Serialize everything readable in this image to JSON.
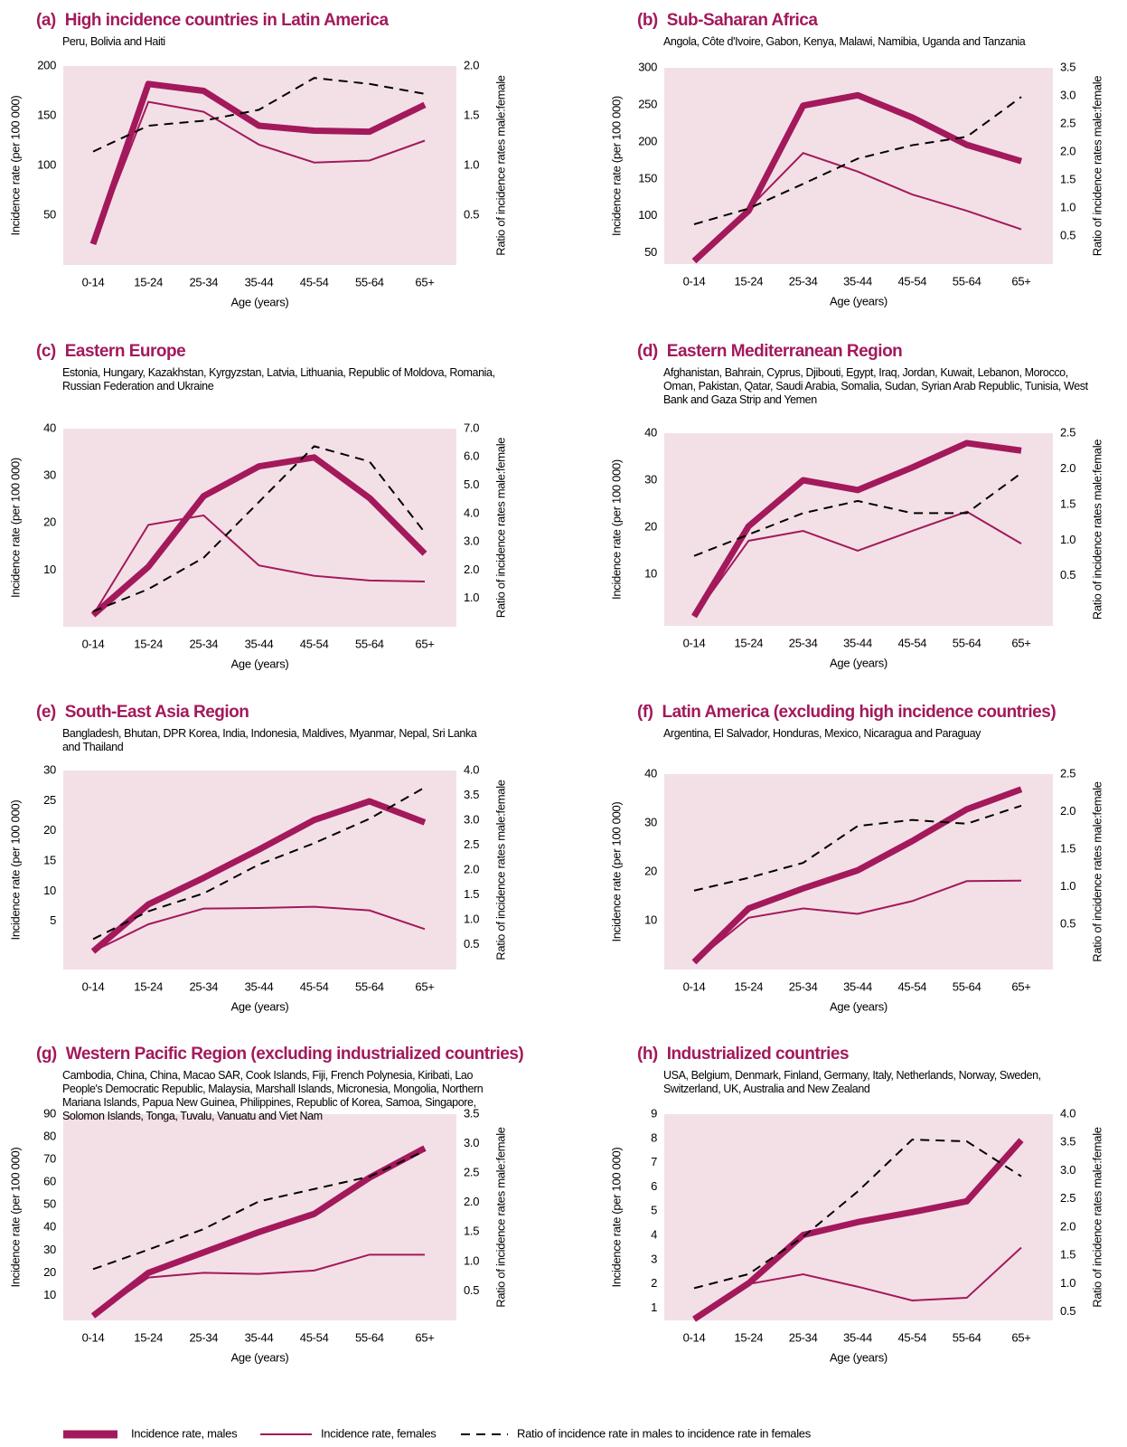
{
  "legend": [
    {
      "name": "Incidence rate, males",
      "color": "#a3195b",
      "style": "thick"
    },
    {
      "name": "Incidence rate, females",
      "color": "#a3195b",
      "style": "thin"
    },
    {
      "name": "Ratio of incidence rate in males to incidence rate in females",
      "color": "#000000",
      "style": "dashed"
    }
  ],
  "chart_data": [
    {
      "type": "line",
      "label": "(a)",
      "title": "High incidence countries in Latin America",
      "subtitle": "Peru, Bolivia and Haiti",
      "xlabel": "Age (years)",
      "ylabel": "Incidence rate (per 100 000)",
      "y2label": "Ratio of incidence rates  male:female",
      "categories": [
        "0-14",
        "15-24",
        "25-34",
        "35-44",
        "45-54",
        "55-64",
        "65+"
      ],
      "ylim": [
        0,
        200
      ],
      "yticks": [
        200,
        150,
        100,
        50
      ],
      "y2lim": [
        0,
        2
      ],
      "y2ticks": [
        {
          "value": 2,
          "label": "2.0"
        },
        1.5,
        {
          "value": 1,
          "label": "1.0"
        },
        0.5
      ],
      "background": "#f3e0e7",
      "series": [
        {
          "values": [
            21,
            182,
            175,
            140,
            135,
            134,
            161
          ]
        },
        {
          "values": [
            21,
            164,
            154,
            121,
            103,
            105,
            125
          ]
        },
        {
          "values": [
            1.14,
            1.4,
            1.45,
            1.56,
            1.88,
            1.82,
            1.72
          ],
          "axis": "y2"
        }
      ]
    },
    {
      "type": "line",
      "label": "(b)",
      "title": "Sub-Saharan Africa",
      "subtitle": "Angola, Côte d'Ivoire, Gabon, Kenya, Malawi, Namibia, Uganda and Tanzania",
      "xlabel": "Age (years)",
      "ylabel": "Incidence rate (per 100 000)",
      "y2label": "Ratio of incidence rates  male:female",
      "categories": [
        "0-14",
        "15-24",
        "25-34",
        "35-44",
        "45-54",
        "55-64",
        "65+"
      ],
      "ylim": [
        35,
        300
      ],
      "yticks": [
        300,
        250,
        200,
        150,
        100,
        50
      ],
      "y2lim": [
        0,
        3.5
      ],
      "y2ticks": [
        3.5,
        {
          "value": 3,
          "label": "3.0"
        },
        2.5,
        {
          "value": 2,
          "label": "2.0"
        },
        1.5,
        {
          "value": 1,
          "label": "1.0"
        },
        0.5
      ],
      "background": "#f3e0e7",
      "series": [
        {
          "values": [
            39,
            107,
            249,
            263,
            233,
            196,
            174
          ]
        },
        {
          "values": [
            40,
            110,
            185,
            160,
            129,
            107,
            82
          ]
        },
        {
          "values": [
            0.71,
            0.99,
            1.43,
            1.88,
            2.12,
            2.27,
            2.98
          ],
          "axis": "y2"
        }
      ]
    },
    {
      "type": "line",
      "label": "(c)",
      "title": "Eastern Europe",
      "subtitle": "Estonia, Hungary, Kazakhstan, Kyrgyzstan, Latvia, Lithuania, Republic of Moldova, Romania, Russian Federation and Ukraine",
      "xlabel": "Age (years)",
      "ylabel": "Incidence rate (per 100 000)",
      "y2label": "Ratio of incidence rates  male:female",
      "categories": [
        "0-14",
        "15-24",
        "25-34",
        "35-44",
        "45-54",
        "55-64",
        "65+"
      ],
      "ylim": [
        -2,
        40
      ],
      "yticks": [
        40,
        30,
        20,
        10
      ],
      "y2lim": [
        0,
        7
      ],
      "y2ticks": [
        {
          "value": 7,
          "label": "7.0"
        },
        {
          "value": 6,
          "label": "6.0"
        },
        {
          "value": 5,
          "label": "5.0"
        },
        {
          "value": 4,
          "label": "4.0"
        },
        {
          "value": 3,
          "label": "3.0"
        },
        {
          "value": 2,
          "label": "2.0"
        },
        {
          "value": 1,
          "label": "1.0"
        }
      ],
      "background": "#f3e0e7",
      "series": [
        {
          "values": [
            0.5,
            10.7,
            25.7,
            32,
            33.9,
            25.3,
            13.5
          ]
        },
        {
          "values": [
            0.5,
            19.6,
            21.6,
            11,
            8.8,
            7.8,
            7.6
          ]
        },
        {
          "values": [
            0.54,
            1.33,
            2.44,
            4.41,
            6.38,
            5.84,
            3.33
          ],
          "axis": "y2"
        }
      ]
    },
    {
      "type": "line",
      "label": "(d)",
      "title": "Eastern Mediterranean Region",
      "subtitle": "Afghanistan, Bahrain, Cyprus, Djibouti, Egypt, Iraq, Jordan, Kuwait, Lebanon, Morocco, Oman,  Pakistan, Qatar, Saudi Arabia, Somalia, Sudan, Syrian Arab Republic, Tunisia, West Bank and Gaza Strip and Yemen",
      "xlabel": "Age (years)",
      "ylabel": "Incidence rate (per 100 000)",
      "y2label": "Ratio of incidence rates  male:female",
      "categories": [
        "0-14",
        "15-24",
        "25-34",
        "35-44",
        "45-54",
        "55-64",
        "65+"
      ],
      "ylim": [
        -1,
        40
      ],
      "yticks": [
        40,
        30,
        20,
        10
      ],
      "y2lim": [
        -0.2,
        2.5
      ],
      "y2ticks": [
        2.5,
        {
          "value": 2,
          "label": "2.0"
        },
        1.5,
        {
          "value": 1,
          "label": "1.0"
        },
        0.5
      ],
      "background": "#f3e0e7",
      "series": [
        {
          "values": [
            1,
            20.2,
            30,
            27.9,
            32.7,
            37.9,
            36.3
          ]
        },
        {
          "values": [
            1,
            17.1,
            19.2,
            15,
            19.2,
            23.3,
            16.5
          ]
        },
        {
          "values": [
            0.78,
            1.08,
            1.38,
            1.55,
            1.38,
            1.38,
            1.94
          ],
          "axis": "y2"
        }
      ]
    },
    {
      "type": "line",
      "label": "(e)",
      "title": "South-East Asia Region",
      "subtitle": "Bangladesh, Bhutan, DPR Korea, India, Indonesia, Maldives, Myanmar, Nepal, Sri Lanka and Thailand",
      "xlabel": "Age (years)",
      "ylabel": "Incidence rate (per 100 000)",
      "y2label": "Ratio of incidence rates  male:female",
      "categories": [
        "0-14",
        "15-24",
        "25-34",
        "35-44",
        "45-54",
        "55-64",
        "65+"
      ],
      "ylim": [
        -3,
        30
      ],
      "yticks": [
        30,
        25,
        20,
        15,
        10,
        5
      ],
      "y2lim": [
        0,
        4
      ],
      "y2ticks": [
        {
          "value": 4,
          "label": "4.0"
        },
        3.5,
        {
          "value": 3,
          "label": "3.0"
        },
        2.5,
        {
          "value": 2,
          "label": "2.0"
        },
        1.5,
        {
          "value": 1,
          "label": "1.0"
        },
        0.5
      ],
      "background": "#f3e0e7",
      "series": [
        {
          "values": [
            0,
            7.8,
            12.2,
            16.9,
            21.8,
            24.9,
            21.4
          ]
        },
        {
          "values": [
            0,
            4.5,
            7.1,
            7.2,
            7.4,
            6.8,
            3.7
          ]
        },
        {
          "values": [
            0.61,
            1.17,
            1.53,
            2.11,
            2.54,
            3.03,
            3.66
          ],
          "axis": "y2"
        }
      ]
    },
    {
      "type": "line",
      "label": "(f)",
      "title": "Latin America (excluding high incidence countries)",
      "subtitle": "Argentina, El Salvador, Honduras, Mexico, Nicaragua and Paraguay",
      "xlabel": "Age (years)",
      "ylabel": "Incidence rate (per 100 000)",
      "y2label": "Ratio of incidence rates  male:female",
      "categories": [
        "0-14",
        "15-24",
        "25-34",
        "35-44",
        "45-54",
        "55-64",
        "65+"
      ],
      "ylim": [
        0,
        40
      ],
      "yticks": [
        40,
        30,
        20,
        10
      ],
      "y2lim": [
        -0.1,
        2.5
      ],
      "y2ticks": [
        2.5,
        {
          "value": 2,
          "label": "2.0"
        },
        1.5,
        {
          "value": 1,
          "label": "1.0"
        },
        0.5
      ],
      "background": "#f3e0e7",
      "series": [
        {
          "values": [
            1.5,
            12.5,
            16.6,
            20.3,
            26.3,
            32.8,
            36.9
          ]
        },
        {
          "values": [
            1.5,
            10.6,
            12.5,
            11.4,
            14,
            18.1,
            18.2
          ]
        },
        {
          "values": [
            0.95,
            1.12,
            1.32,
            1.81,
            1.89,
            1.84,
            2.08
          ],
          "axis": "y2"
        }
      ]
    },
    {
      "type": "line",
      "label": "(g)",
      "title": "Western Pacific Region (excluding industrialized countries)",
      "subtitle": "Cambodia, China, China,  Macao SAR, Cook Islands, Fiji, French Polynesia, Kiribati, Lao People's Democratic Republic, Malaysia, Marshall Islands, Micronesia, Mongolia, Northern Mariana Islands, Papua New Guinea, Philippines, Republic of Korea, Samoa, Singapore, Solomon Islands, Tonga, Tuvalu, Vanuatu and Viet Nam",
      "xlabel": "Age (years)",
      "ylabel": "Incidence rate (per 100 000)",
      "y2label": "Ratio of incidence rates  male:female",
      "categories": [
        "0-14",
        "15-24",
        "25-34",
        "35-44",
        "45-54",
        "55-64",
        "65+"
      ],
      "ylim": [
        -1,
        90
      ],
      "yticks": [
        90,
        80,
        70,
        60,
        50,
        40,
        30,
        20,
        10
      ],
      "y2lim": [
        0,
        3.5
      ],
      "y2ticks": [
        3.5,
        {
          "value": 3,
          "label": "3.0"
        },
        2.5,
        {
          "value": 2,
          "label": "2.0"
        },
        1.5,
        {
          "value": 1,
          "label": "1.0"
        },
        0.5
      ],
      "background": "#f3e0e7",
      "series": [
        {
          "values": [
            1,
            20,
            29,
            38,
            46,
            62,
            75
          ]
        },
        {
          "values": [
            1,
            17.9,
            20,
            19.5,
            21,
            28,
            28
          ]
        },
        {
          "values": [
            0.87,
            1.2,
            1.55,
            2.02,
            2.23,
            2.44,
            2.88
          ],
          "axis": "y2"
        }
      ]
    },
    {
      "type": "line",
      "label": "(h)",
      "title": "Industrialized countries",
      "subtitle": "USA, Belgium, Denmark, Finland, Germany, Italy, Netherlands, Norway, Sweden, Switzerland, UK, Australia and New Zealand",
      "xlabel": "Age (years)",
      "ylabel": "Incidence rate (per 100 000)",
      "y2label": "Ratio of incidence rates  male:female",
      "categories": [
        "0-14",
        "15-24",
        "25-34",
        "35-44",
        "45-54",
        "55-64",
        "65+"
      ],
      "ylim": [
        0.5,
        9
      ],
      "yticks": [
        9,
        8,
        7,
        6,
        5,
        4,
        3,
        2,
        1
      ],
      "y2lim": [
        0.35,
        4
      ],
      "y2ticks": [
        {
          "value": 4,
          "label": "4.0"
        },
        3.5,
        {
          "value": 3,
          "label": "3.0"
        },
        2.5,
        {
          "value": 2,
          "label": "2.0"
        },
        1.5,
        {
          "value": 1,
          "label": "1.0"
        },
        0.5
      ],
      "background": "#f3e0e7",
      "series": [
        {
          "values": [
            0.55,
            2.03,
            4.02,
            4.55,
            4.96,
            5.41,
            7.93
          ]
        },
        {
          "values": [
            0.55,
            2,
            2.4,
            1.89,
            1.32,
            1.43,
            3.5
          ]
        },
        {
          "values": [
            0.92,
            1.17,
            1.83,
            2.63,
            3.55,
            3.52,
            2.9
          ],
          "axis": "y2"
        }
      ]
    }
  ]
}
